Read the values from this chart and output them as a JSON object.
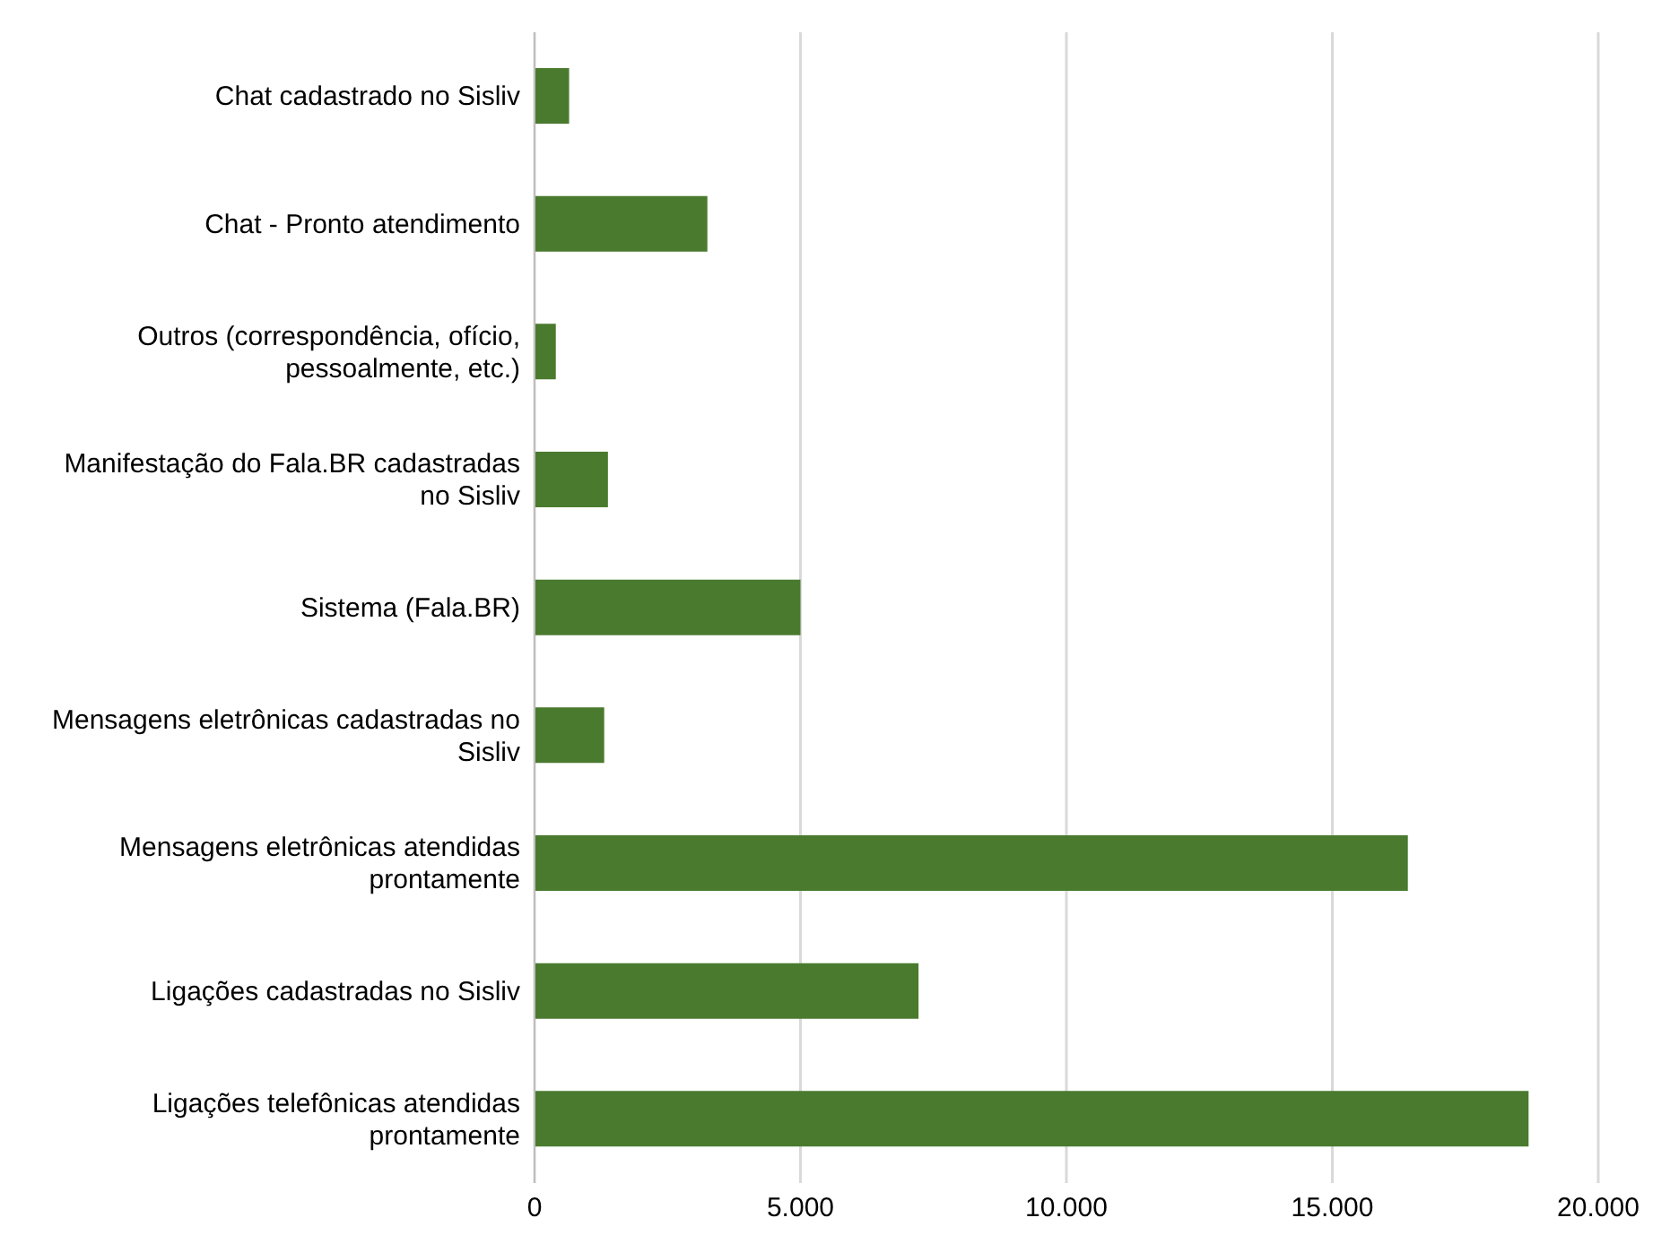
{
  "chart_data": {
    "type": "bar",
    "orientation": "horizontal",
    "categories": [
      "Chat cadastrado no Sisliv",
      "Chat - Pronto atendimento",
      "Outros (correspondência, ofício, pessoalmente, etc.)",
      "Manifestação do Fala.BR cadastradas no Sisliv",
      "Sistema (Fala.BR)",
      "Mensagens eletrônicas cadastradas no Sisliv",
      "Mensagens eletrônicas atendidas prontamente",
      "Ligações cadastradas no Sisliv",
      "Ligações telefônicas atendidas prontamente"
    ],
    "values": [
      650,
      3250,
      400,
      1380,
      5000,
      1310,
      16420,
      7220,
      18690
    ],
    "color": "#4a7a2e",
    "xlim": [
      0,
      20000
    ],
    "xticks": [
      {
        "value": 0,
        "label": "0"
      },
      {
        "value": 5000,
        "label": "5.000"
      },
      {
        "value": 10000,
        "label": "10.000"
      },
      {
        "value": 15000,
        "label": "15.000"
      },
      {
        "value": 20000,
        "label": "20.000"
      }
    ],
    "grid": "x"
  }
}
